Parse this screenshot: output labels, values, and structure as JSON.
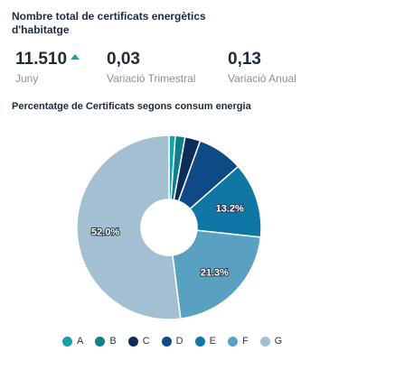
{
  "header": {
    "title": "Nombre total de certificats energètics d'habitatge"
  },
  "kpis": [
    {
      "value": "11.510",
      "label": "Juny",
      "trend": "up"
    },
    {
      "value": "0,03",
      "label": "Variació Trimestral"
    },
    {
      "value": "0,13",
      "label": "Variació Anual"
    }
  ],
  "colors": {
    "trend_up": "#16a5a8"
  },
  "chart_data": {
    "type": "pie",
    "title": "Percentatge de Certificats segons consum energia",
    "categories": [
      "A",
      "B",
      "C",
      "D",
      "E",
      "F",
      "G"
    ],
    "values": [
      1.1,
      1.7,
      2.7,
      8.0,
      13.2,
      21.3,
      52.0
    ],
    "data_labels": [
      "",
      "",
      "",
      "",
      "13.2%",
      "21.3%",
      "52.0%"
    ],
    "colors": [
      "#13a3a8",
      "#0f7f8f",
      "#0c2d5a",
      "#0e4b86",
      "#0e77a5",
      "#5aa0c0",
      "#a3bfd2"
    ],
    "donut": true,
    "legend_position": "bottom"
  }
}
